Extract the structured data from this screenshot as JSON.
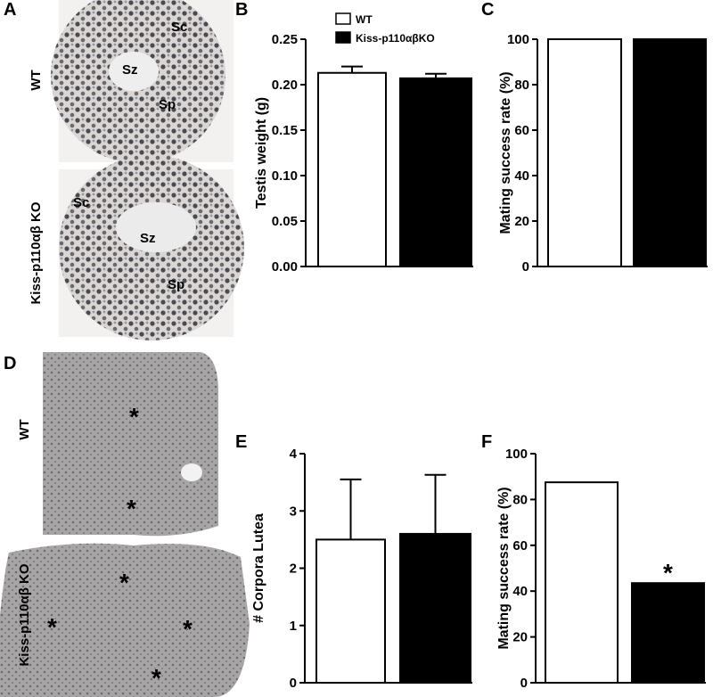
{
  "panel_labels": [
    "A",
    "B",
    "C",
    "D",
    "E",
    "F"
  ],
  "images": {
    "A": {
      "row_labels": [
        "WT",
        "Kiss-p110αβ KO"
      ],
      "annotations": [
        "Sc",
        "Sz",
        "Sp",
        "Sc",
        "Sz",
        "Sp"
      ]
    },
    "D": {
      "row_labels": [
        "WT",
        "Kiss-p110αβ KO"
      ],
      "annotations": [
        "*",
        "*",
        "*",
        "*",
        "*",
        "*"
      ]
    }
  },
  "chart_data": [
    {
      "type": "bar",
      "ylabel": "Testis weight (g)",
      "categories": [
        null
      ],
      "legend": true,
      "ylim": [
        0,
        0.25
      ],
      "yticks": [
        {
          "value": 0,
          "label": "0.00"
        },
        0.05,
        {
          "value": 0.1,
          "label": "0.10"
        },
        0.15,
        {
          "value": 0.2,
          "label": "0.20"
        },
        0.25
      ],
      "series": [
        {
          "name": "WT",
          "color": "#ffffff",
          "values": [
            0.213
          ],
          "errors": [
            0.007
          ]
        },
        {
          "name": "Kiss-p110αβKO",
          "color": "#000000",
          "values": [
            0.207
          ],
          "errors": [
            0.005
          ]
        }
      ]
    },
    {
      "type": "bar",
      "ylabel": "Mating success rate (%)",
      "categories": [
        null
      ],
      "ylim": [
        0,
        100
      ],
      "yticks": [
        0,
        20,
        40,
        60,
        80,
        100
      ],
      "series": [
        {
          "color": "#ffffff",
          "values": [
            100
          ]
        },
        {
          "color": "#000000",
          "values": [
            100
          ]
        }
      ]
    },
    {
      "type": "bar",
      "ylabel": "# Corpora Lutea",
      "categories": [
        null
      ],
      "ylim": [
        0,
        4
      ],
      "yticks": [
        0,
        1,
        2,
        3,
        4
      ],
      "series": [
        {
          "color": "#ffffff",
          "values": [
            2.5
          ],
          "errors": [
            1.05
          ]
        },
        {
          "color": "#000000",
          "values": [
            2.6
          ],
          "errors": [
            1.03
          ]
        }
      ]
    },
    {
      "type": "bar",
      "ylabel": "Mating success rate (%)",
      "categories": [
        null
      ],
      "ylim": [
        0,
        100
      ],
      "yticks": [
        0,
        20,
        40,
        60,
        80,
        100
      ],
      "series": [
        {
          "color": "#ffffff",
          "values": [
            87.5
          ]
        },
        {
          "color": "#000000",
          "values": [
            43.5
          ],
          "annotations": [
            "*"
          ]
        }
      ]
    }
  ]
}
